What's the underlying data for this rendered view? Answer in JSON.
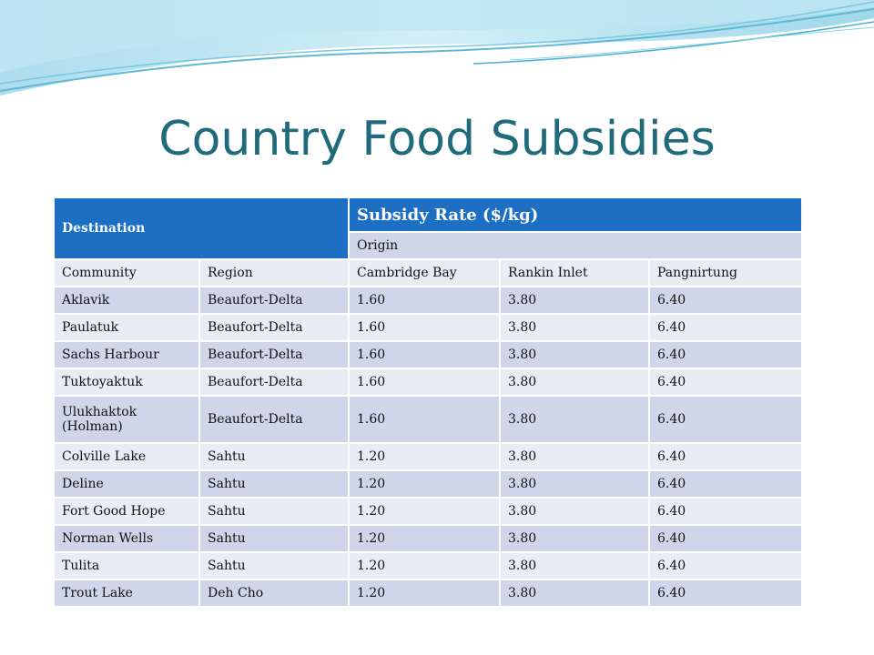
{
  "slide": {
    "title": "Country Food Subsidies"
  },
  "table": {
    "destination_label": "Destination",
    "subsidy_label": "Subsidy Rate ($/kg)",
    "origin_label": "Origin",
    "columns": [
      "Community",
      "Region",
      "Cambridge Bay",
      "Rankin Inlet",
      "Pangnirtung"
    ],
    "rows": [
      [
        "Aklavik",
        "Beaufort-Delta",
        "1.60",
        "3.80",
        "6.40"
      ],
      [
        "Paulatuk",
        "Beaufort-Delta",
        "1.60",
        "3.80",
        "6.40"
      ],
      [
        "Sachs Harbour",
        "Beaufort-Delta",
        "1.60",
        "3.80",
        "6.40"
      ],
      [
        "Tuktoyaktuk",
        "Beaufort-Delta",
        "1.60",
        "3.80",
        "6.40"
      ],
      [
        "Ulukhaktok (Holman)",
        "Beaufort-Delta",
        "1.60",
        "3.80",
        "6.40"
      ],
      [
        "Colville Lake",
        "Sahtu",
        "1.20",
        "3.80",
        "6.40"
      ],
      [
        "Deline",
        "Sahtu",
        "1.20",
        "3.80",
        "6.40"
      ],
      [
        "Fort Good Hope",
        "Sahtu",
        "1.20",
        "3.80",
        "6.40"
      ],
      [
        "Norman Wells",
        "Sahtu",
        "1.20",
        "3.80",
        "6.40"
      ],
      [
        "Tulita",
        "Sahtu",
        "1.20",
        "3.80",
        "6.40"
      ],
      [
        "Trout Lake",
        "Deh Cho",
        "1.20",
        "3.80",
        "6.40"
      ]
    ]
  },
  "colors": {
    "title": "#1f6b7c",
    "header": "#1d6fc4",
    "band_dark": "#cfd6ea",
    "band_light": "#e8ecf5"
  }
}
